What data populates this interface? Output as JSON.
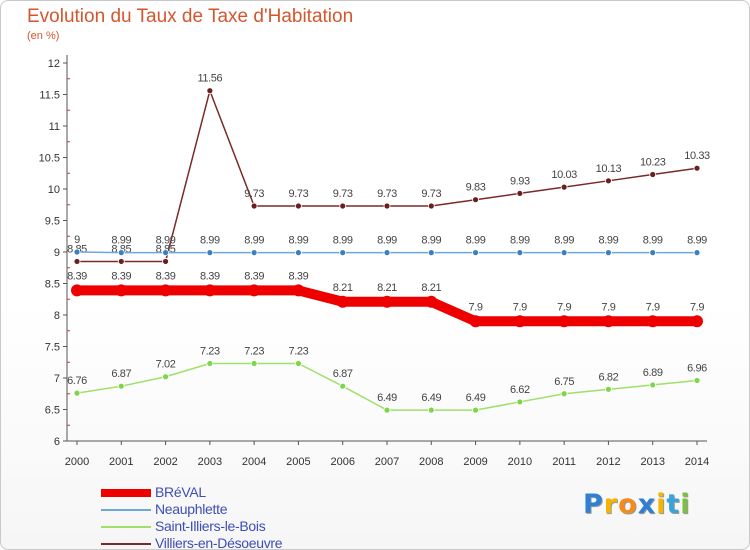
{
  "chart_data": {
    "type": "line",
    "title": "Evolution du Taux de Taxe d'Habitation",
    "subtitle": "(en %)",
    "x": [
      "2000",
      "2001",
      "2002",
      "2003",
      "2004",
      "2005",
      "2006",
      "2007",
      "2008",
      "2009",
      "2010",
      "2011",
      "2012",
      "2013",
      "2014"
    ],
    "ylim": [
      6,
      12
    ],
    "yticks": [
      "6",
      "6.5",
      "7",
      "7.5",
      "8",
      "8.5",
      "9",
      "9.5",
      "10",
      "10.5",
      "11",
      "11.5",
      "12"
    ],
    "grid": false,
    "legend_position": "bottom-left",
    "series": [
      {
        "name": "BRéVAL",
        "color": "#ee0000",
        "values": [
          8.39,
          8.39,
          8.39,
          8.39,
          8.39,
          8.39,
          8.21,
          8.21,
          8.21,
          7.9,
          7.9,
          7.9,
          7.9,
          7.9,
          7.9
        ],
        "labels": [
          "8.39",
          "8.39",
          "8.39",
          "8.39",
          "8.39",
          "8.39",
          "8.21",
          "8.21",
          "8.21",
          "7.9",
          "7.9",
          "7.9",
          "7.9",
          "7.9",
          "7.9"
        ]
      },
      {
        "name": "Neauphlette",
        "color": "#6fa8d6",
        "values": [
          9.0,
          8.99,
          8.99,
          8.99,
          8.99,
          8.99,
          8.99,
          8.99,
          8.99,
          8.99,
          8.99,
          8.99,
          8.99,
          8.99,
          8.99
        ],
        "labels": [
          "9",
          "8.99",
          "8.99",
          "8.99",
          "8.99",
          "8.99",
          "8.99",
          "8.99",
          "8.99",
          "8.99",
          "8.99",
          "8.99",
          "8.99",
          "8.99",
          "8.99"
        ]
      },
      {
        "name": "Saint-Illiers-le-Bois",
        "color": "#9ee06a",
        "values": [
          6.76,
          6.87,
          7.02,
          7.23,
          7.23,
          7.23,
          6.87,
          6.49,
          6.49,
          6.49,
          6.62,
          6.75,
          6.82,
          6.89,
          6.96
        ],
        "labels": [
          "6.76",
          "6.87",
          "7.02",
          "7.23",
          "7.23",
          "7.23",
          "6.87",
          "6.49",
          "6.49",
          "6.49",
          "6.62",
          "6.75",
          "6.82",
          "6.89",
          "6.96"
        ]
      },
      {
        "name": "Villiers-en-Désoeuvre",
        "color": "#7a2a2a",
        "values": [
          8.85,
          8.85,
          8.85,
          11.56,
          9.73,
          9.73,
          9.73,
          9.73,
          9.73,
          9.83,
          9.93,
          10.03,
          10.13,
          10.23,
          10.33
        ],
        "labels": [
          "8.85",
          "8.85",
          "8.85",
          "11.56",
          "9.73",
          "9.73",
          "9.73",
          "9.73",
          "9.73",
          "9.83",
          "9.93",
          "10.03",
          "10.13",
          "10.23",
          "10.33"
        ]
      }
    ]
  },
  "legend": {
    "items": [
      {
        "label": "BRéVAL"
      },
      {
        "label": "Neauphlette"
      },
      {
        "label": "Saint-Illiers-le-Bois"
      },
      {
        "label": "Villiers-en-Désoeuvre"
      }
    ]
  },
  "logo": {
    "letters": [
      "P",
      "r",
      "o",
      "x",
      "i",
      "t",
      "i"
    ],
    "colors": [
      "#2f7fd3",
      "#f5b400",
      "#f28c1c",
      "#2f7fd3",
      "#f5b400",
      "#3aa3d8",
      "#7bc043"
    ]
  }
}
